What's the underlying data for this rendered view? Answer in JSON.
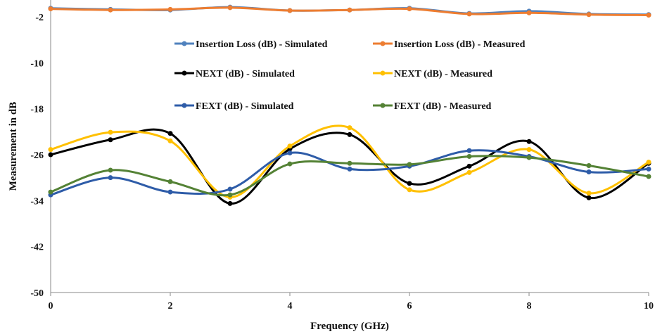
{
  "chart_data": {
    "type": "line",
    "xlabel": "Frequency (GHz)",
    "ylabel": "Measurement in dB",
    "xlim": [
      0,
      10
    ],
    "ylim": [
      -50,
      0
    ],
    "x_ticks": [
      0,
      2,
      4,
      6,
      8,
      10
    ],
    "y_ticks": [
      -2,
      -10,
      -18,
      -26,
      -34,
      -42,
      -50
    ],
    "grid": false,
    "legend_position": "top-center",
    "x": [
      0,
      1,
      2,
      3,
      4,
      5,
      6,
      7,
      8,
      9,
      10
    ],
    "series": [
      {
        "name": "Insertion Loss (dB) - Simulated",
        "color": "#4f81bd",
        "values": [
          -0.5,
          -0.7,
          -0.8,
          -0.3,
          -0.9,
          -0.8,
          -0.5,
          -1.4,
          -1.0,
          -1.5,
          -1.6
        ]
      },
      {
        "name": "Insertion Loss (dB) - Measured",
        "color": "#ed7d31",
        "values": [
          -0.6,
          -0.8,
          -0.7,
          -0.4,
          -0.9,
          -0.8,
          -0.6,
          -1.5,
          -1.3,
          -1.6,
          -1.7
        ]
      },
      {
        "name": "NEXT (dB) - Simulated",
        "color": "#000000",
        "values": [
          -26.0,
          -23.4,
          -22.3,
          -34.5,
          -25.0,
          -22.5,
          -31.0,
          -28.0,
          -23.7,
          -33.5,
          -27.5
        ]
      },
      {
        "name": "NEXT (dB) - Measured",
        "color": "#ffc000",
        "values": [
          -25.1,
          -22.1,
          -23.6,
          -33.4,
          -24.5,
          -21.3,
          -32.1,
          -29.1,
          -25.1,
          -32.7,
          -27.3
        ]
      },
      {
        "name": "FEXT (dB) - Simulated",
        "color": "#2e5ca8",
        "values": [
          -33.0,
          -30.0,
          -32.5,
          -32.0,
          -25.7,
          -28.5,
          -28.0,
          -25.3,
          -26.3,
          -29.0,
          -28.5
        ]
      },
      {
        "name": "FEXT (dB) - Measured",
        "color": "#548235",
        "values": [
          -32.5,
          -28.7,
          -30.7,
          -33.0,
          -27.6,
          -27.5,
          -27.7,
          -26.3,
          -26.5,
          -27.9,
          -29.8
        ]
      }
    ]
  }
}
